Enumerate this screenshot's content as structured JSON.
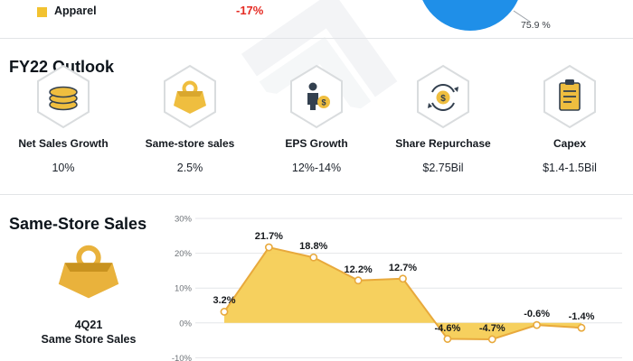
{
  "top": {
    "legend_apparel": "Apparel",
    "change_value": "-17%",
    "donut_label": "75.9 %"
  },
  "outlook": {
    "title": "FY22 Outlook",
    "items": [
      {
        "label": "Net Sales Growth",
        "value": "10%",
        "icon": "coins-icon"
      },
      {
        "label": "Same-store sales",
        "value": "2.5%",
        "icon": "bag-icon"
      },
      {
        "label": "EPS Growth",
        "value": "12%-14%",
        "icon": "person-dollar-icon"
      },
      {
        "label": "Share Repurchase",
        "value": "$2.75Bil",
        "icon": "repurchase-icon"
      },
      {
        "label": "Capex",
        "value": "$1.4-1.5Bil",
        "icon": "document-icon"
      }
    ]
  },
  "same_store": {
    "title": "Same-Store Sales",
    "caption_line1": "4Q21",
    "caption_line2": "Same Store Sales"
  },
  "chart_data": {
    "type": "area",
    "title": "4Q21 Same Store Sales",
    "values": [
      3.2,
      21.7,
      18.8,
      12.2,
      12.7,
      -4.6,
      -4.7,
      -0.6,
      -1.4
    ],
    "labels": [
      "3.2%",
      "21.7%",
      "18.8%",
      "12.2%",
      "12.7%",
      "-4.6%",
      "-4.7%",
      "-0.6%",
      "-1.4%"
    ],
    "ylim": [
      -10,
      30
    ],
    "yticks": [
      30,
      20,
      10,
      0,
      -10
    ],
    "ytick_labels": [
      "30%",
      "20%",
      "10%",
      "0%",
      "-10%"
    ],
    "grid": true,
    "baseline": 0,
    "fill_color": "#F5CD55",
    "line_color": "#E8A93C",
    "marker_fill": "#ffffff",
    "grid_color": "#e4e6e8",
    "tick_color": "#6e7378"
  },
  "colors": {
    "accent_yellow": "#F2C230",
    "dark_navy": "#33404f",
    "blue": "#1F8FE8",
    "red": "#E52A22"
  }
}
